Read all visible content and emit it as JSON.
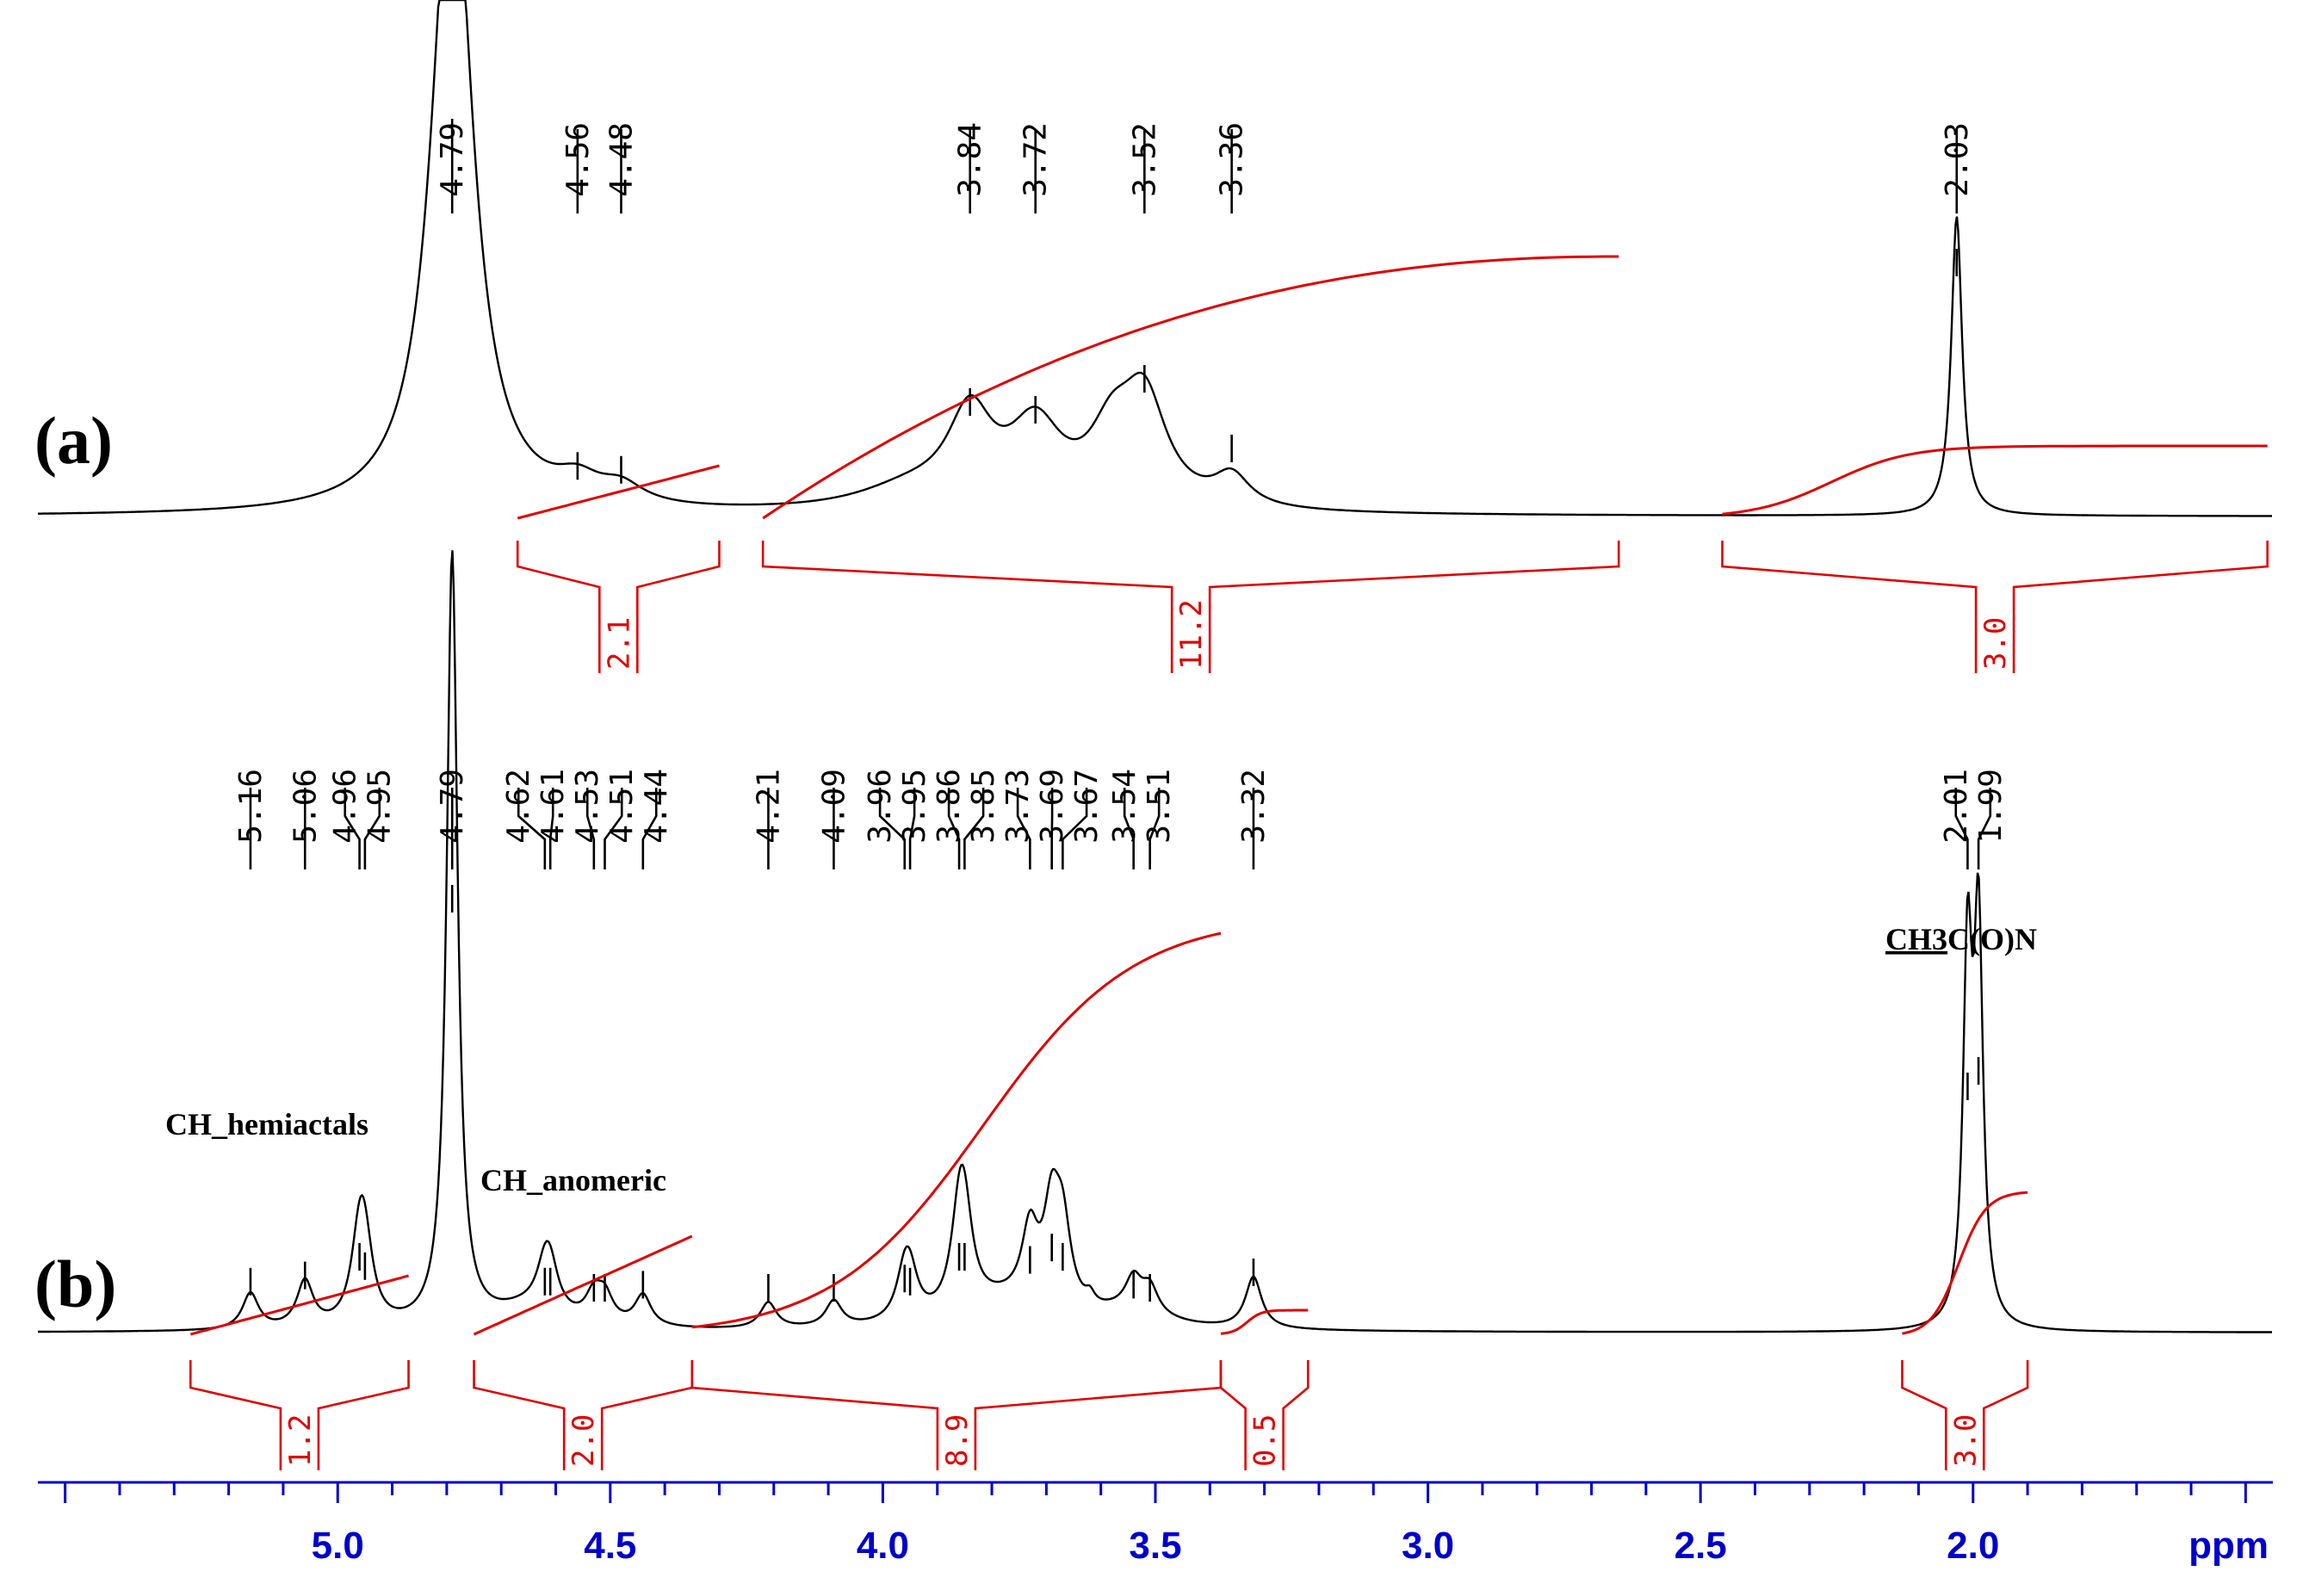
{
  "chart_data": {
    "type": "line",
    "xlabel": "ppm",
    "xlim": [
      5.55,
      1.45
    ],
    "x_reversed": true,
    "axis_ticks": [
      5.0,
      4.5,
      4.0,
      3.5,
      3.0,
      2.5,
      2.0
    ],
    "axis_tick_labels": [
      "5.0",
      "4.5",
      "4.0",
      "3.5",
      "3.0",
      "2.5",
      "2.0"
    ],
    "minor_tick_step": 0.1,
    "spectra": [
      {
        "panel_label": "(a)",
        "peak_labels": [
          "4.79",
          "4.56",
          "4.48",
          "3.84",
          "3.72",
          "3.52",
          "3.36",
          "2.03"
        ],
        "peaks": [
          {
            "ppm": 4.79,
            "height": 1.3
          },
          {
            "ppm": 4.56,
            "height": 0.055
          },
          {
            "ppm": 4.48,
            "height": 0.045
          },
          {
            "ppm": 3.84,
            "height": 0.22
          },
          {
            "ppm": 3.72,
            "height": 0.2
          },
          {
            "ppm": 3.52,
            "height": 0.28
          },
          {
            "ppm": 3.36,
            "height": 0.1
          },
          {
            "ppm": 2.03,
            "height": 0.58
          }
        ],
        "integrals": [
          {
            "from": 4.67,
            "to": 4.3,
            "value": "2.1"
          },
          {
            "from": 4.22,
            "to": 2.65,
            "value": "11.2"
          },
          {
            "from": 2.46,
            "to": 1.46,
            "value": "3.0"
          }
        ]
      },
      {
        "panel_label": "(b)",
        "peak_labels": [
          "5.16",
          "5.06",
          "4.96",
          "4.95",
          "4.79",
          "4.62",
          "4.61",
          "4.53",
          "4.51",
          "4.44",
          "4.21",
          "4.09",
          "3.96",
          "3.95",
          "3.86",
          "3.85",
          "3.73",
          "3.69",
          "3.67",
          "3.54",
          "3.51",
          "3.32",
          "2.01",
          "1.99"
        ],
        "peaks": [
          {
            "ppm": 5.16,
            "height": 0.07
          },
          {
            "ppm": 5.06,
            "height": 0.09
          },
          {
            "ppm": 4.96,
            "height": 0.15
          },
          {
            "ppm": 4.95,
            "height": 0.12
          },
          {
            "ppm": 4.79,
            "height": 1.5
          },
          {
            "ppm": 4.62,
            "height": 0.07
          },
          {
            "ppm": 4.61,
            "height": 0.07
          },
          {
            "ppm": 4.53,
            "height": 0.05
          },
          {
            "ppm": 4.51,
            "height": 0.05
          },
          {
            "ppm": 4.44,
            "height": 0.06
          },
          {
            "ppm": 4.21,
            "height": 0.05
          },
          {
            "ppm": 4.09,
            "height": 0.05
          },
          {
            "ppm": 3.96,
            "height": 0.08
          },
          {
            "ppm": 3.95,
            "height": 0.07
          },
          {
            "ppm": 3.86,
            "height": 0.15
          },
          {
            "ppm": 3.85,
            "height": 0.15
          },
          {
            "ppm": 3.73,
            "height": 0.14
          },
          {
            "ppm": 3.69,
            "height": 0.18
          },
          {
            "ppm": 3.67,
            "height": 0.15
          },
          {
            "ppm": 3.54,
            "height": 0.06
          },
          {
            "ppm": 3.51,
            "height": 0.05
          },
          {
            "ppm": 3.32,
            "height": 0.1
          },
          {
            "ppm": 2.01,
            "height": 0.7
          },
          {
            "ppm": 1.99,
            "height": 0.75
          }
        ],
        "integrals": [
          {
            "from": 5.27,
            "to": 4.87,
            "value": "1.2"
          },
          {
            "from": 4.75,
            "to": 4.35,
            "value": "2.0"
          },
          {
            "from": 4.35,
            "to": 3.38,
            "value": "8.9"
          },
          {
            "from": 3.38,
            "to": 3.22,
            "value": "0.5"
          },
          {
            "from": 2.13,
            "to": 1.9,
            "value": "3.0"
          }
        ],
        "annotations": [
          {
            "text": "CH_hemiactals",
            "ppm": 5.1
          },
          {
            "text": "CH_anomeric",
            "ppm": 4.55
          },
          {
            "text_underlined": "CH3",
            "text_rest": "C(O)N",
            "ppm": 2.0
          }
        ]
      }
    ],
    "colors": {
      "spectrum": "#000000",
      "integral": "#e00000",
      "axis": "#0000cc"
    }
  }
}
